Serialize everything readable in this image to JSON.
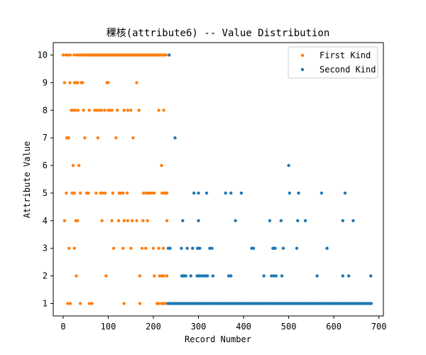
{
  "chart_data": {
    "type": "scatter",
    "title": "稞核(attribute6) -- Value Distribution",
    "xlabel": "Record Number",
    "ylabel": "Attribute Value",
    "xlim": [
      -22,
      710
    ],
    "ylim": [
      0.55,
      10.45
    ],
    "xticks": [
      0,
      100,
      200,
      300,
      400,
      500,
      600,
      700
    ],
    "yticks": [
      1,
      2,
      3,
      4,
      5,
      6,
      7,
      8,
      9,
      10
    ],
    "grid": false,
    "legend_position": "top-right",
    "series": [
      {
        "name": "First Kind",
        "color": "#ff7f0e",
        "points": [
          [
            0,
            10
          ],
          [
            6,
            10
          ],
          [
            11,
            10
          ],
          [
            16,
            10
          ],
          [
            24,
            10
          ],
          [
            30,
            10
          ],
          [
            35,
            10
          ],
          [
            39,
            10
          ],
          [
            43,
            10
          ],
          [
            48,
            10
          ],
          [
            52,
            10
          ],
          [
            56,
            10
          ],
          [
            60,
            10
          ],
          [
            64,
            10
          ],
          [
            68,
            10
          ],
          [
            72,
            10
          ],
          [
            76,
            10
          ],
          [
            80,
            10
          ],
          [
            84,
            10
          ],
          [
            88,
            10
          ],
          [
            92,
            10
          ],
          [
            96,
            10
          ],
          [
            100,
            10
          ],
          [
            104,
            10
          ],
          [
            108,
            10
          ],
          [
            112,
            10
          ],
          [
            116,
            10
          ],
          [
            120,
            10
          ],
          [
            124,
            10
          ],
          [
            128,
            10
          ],
          [
            132,
            10
          ],
          [
            136,
            10
          ],
          [
            140,
            10
          ],
          [
            144,
            10
          ],
          [
            148,
            10
          ],
          [
            152,
            10
          ],
          [
            156,
            10
          ],
          [
            160,
            10
          ],
          [
            164,
            10
          ],
          [
            168,
            10
          ],
          [
            172,
            10
          ],
          [
            176,
            10
          ],
          [
            180,
            10
          ],
          [
            184,
            10
          ],
          [
            188,
            10
          ],
          [
            192,
            10
          ],
          [
            196,
            10
          ],
          [
            200,
            10
          ],
          [
            204,
            10
          ],
          [
            208,
            10
          ],
          [
            212,
            10
          ],
          [
            216,
            10
          ],
          [
            220,
            10
          ],
          [
            224,
            10
          ],
          [
            228,
            10
          ],
          [
            3,
            9
          ],
          [
            15,
            9
          ],
          [
            25,
            9
          ],
          [
            29,
            9
          ],
          [
            32,
            9
          ],
          [
            40,
            9
          ],
          [
            43,
            9
          ],
          [
            97,
            9
          ],
          [
            100,
            9
          ],
          [
            163,
            9
          ],
          [
            18,
            8
          ],
          [
            22,
            8
          ],
          [
            27,
            8
          ],
          [
            33,
            8
          ],
          [
            45,
            8
          ],
          [
            58,
            8
          ],
          [
            70,
            8
          ],
          [
            75,
            8
          ],
          [
            80,
            8
          ],
          [
            85,
            8
          ],
          [
            92,
            8
          ],
          [
            100,
            8
          ],
          [
            103,
            8
          ],
          [
            108,
            8
          ],
          [
            120,
            8
          ],
          [
            135,
            8
          ],
          [
            143,
            8
          ],
          [
            150,
            8
          ],
          [
            168,
            8
          ],
          [
            212,
            8
          ],
          [
            223,
            8
          ],
          [
            8,
            7
          ],
          [
            12,
            7
          ],
          [
            48,
            7
          ],
          [
            77,
            7
          ],
          [
            117,
            7
          ],
          [
            155,
            7
          ],
          [
            22,
            6
          ],
          [
            35,
            6
          ],
          [
            218,
            6
          ],
          [
            7,
            5
          ],
          [
            20,
            5
          ],
          [
            25,
            5
          ],
          [
            38,
            5
          ],
          [
            52,
            5
          ],
          [
            56,
            5
          ],
          [
            73,
            5
          ],
          [
            83,
            5
          ],
          [
            88,
            5
          ],
          [
            93,
            5
          ],
          [
            110,
            5
          ],
          [
            124,
            5
          ],
          [
            128,
            5
          ],
          [
            133,
            5
          ],
          [
            142,
            5
          ],
          [
            178,
            5
          ],
          [
            184,
            5
          ],
          [
            188,
            5
          ],
          [
            192,
            5
          ],
          [
            197,
            5
          ],
          [
            202,
            5
          ],
          [
            219,
            5
          ],
          [
            224,
            5
          ],
          [
            227,
            5
          ],
          [
            230,
            5
          ],
          [
            3,
            4
          ],
          [
            28,
            4
          ],
          [
            32,
            4
          ],
          [
            86,
            4
          ],
          [
            108,
            4
          ],
          [
            123,
            4
          ],
          [
            135,
            4
          ],
          [
            143,
            4
          ],
          [
            153,
            4
          ],
          [
            163,
            4
          ],
          [
            177,
            4
          ],
          [
            187,
            4
          ],
          [
            230,
            4
          ],
          [
            13,
            3
          ],
          [
            25,
            3
          ],
          [
            112,
            3
          ],
          [
            133,
            3
          ],
          [
            150,
            3
          ],
          [
            175,
            3
          ],
          [
            183,
            3
          ],
          [
            200,
            3
          ],
          [
            212,
            3
          ],
          [
            222,
            3
          ],
          [
            29,
            2
          ],
          [
            95,
            2
          ],
          [
            170,
            2
          ],
          [
            202,
            2
          ],
          [
            214,
            2
          ],
          [
            219,
            2
          ],
          [
            223,
            2
          ],
          [
            230,
            2
          ],
          [
            10,
            1
          ],
          [
            16,
            1
          ],
          [
            38,
            1
          ],
          [
            58,
            1
          ],
          [
            64,
            1
          ],
          [
            135,
            1
          ],
          [
            170,
            1
          ],
          [
            208,
            1
          ],
          [
            212,
            1
          ],
          [
            218,
            1
          ],
          [
            222,
            1
          ],
          [
            226,
            1
          ]
        ]
      },
      {
        "name": "Second Kind",
        "color": "#1f77b4",
        "points": [
          [
            235,
            10
          ],
          [
            248,
            7
          ],
          [
            500,
            6
          ],
          [
            290,
            5
          ],
          [
            300,
            5
          ],
          [
            318,
            5
          ],
          [
            360,
            5
          ],
          [
            372,
            5
          ],
          [
            395,
            5
          ],
          [
            502,
            5
          ],
          [
            522,
            5
          ],
          [
            573,
            5
          ],
          [
            625,
            5
          ],
          [
            265,
            4
          ],
          [
            300,
            4
          ],
          [
            382,
            4
          ],
          [
            458,
            4
          ],
          [
            483,
            4
          ],
          [
            520,
            4
          ],
          [
            537,
            4
          ],
          [
            620,
            4
          ],
          [
            643,
            4
          ],
          [
            233,
            3
          ],
          [
            237,
            3
          ],
          [
            262,
            3
          ],
          [
            275,
            3
          ],
          [
            287,
            3
          ],
          [
            298,
            3
          ],
          [
            300,
            3
          ],
          [
            303,
            3
          ],
          [
            325,
            3
          ],
          [
            330,
            3
          ],
          [
            418,
            3
          ],
          [
            422,
            3
          ],
          [
            465,
            3
          ],
          [
            467,
            3
          ],
          [
            470,
            3
          ],
          [
            488,
            3
          ],
          [
            518,
            3
          ],
          [
            585,
            3
          ],
          [
            263,
            2
          ],
          [
            266,
            2
          ],
          [
            268,
            2
          ],
          [
            272,
            2
          ],
          [
            283,
            2
          ],
          [
            297,
            2
          ],
          [
            300,
            2
          ],
          [
            303,
            2
          ],
          [
            308,
            2
          ],
          [
            312,
            2
          ],
          [
            316,
            2
          ],
          [
            320,
            2
          ],
          [
            332,
            2
          ],
          [
            367,
            2
          ],
          [
            372,
            2
          ],
          [
            445,
            2
          ],
          [
            462,
            2
          ],
          [
            467,
            2
          ],
          [
            472,
            2
          ],
          [
            485,
            2
          ],
          [
            563,
            2
          ],
          [
            620,
            2
          ],
          [
            633,
            2
          ],
          [
            682,
            2
          ],
          [
            232,
            1
          ],
          [
            236,
            1
          ],
          [
            240,
            1
          ],
          [
            244,
            1
          ],
          [
            248,
            1
          ],
          [
            252,
            1
          ],
          [
            256,
            1
          ],
          [
            260,
            1
          ],
          [
            264,
            1
          ],
          [
            268,
            1
          ],
          [
            272,
            1
          ],
          [
            276,
            1
          ],
          [
            280,
            1
          ],
          [
            284,
            1
          ],
          [
            288,
            1
          ],
          [
            292,
            1
          ],
          [
            296,
            1
          ],
          [
            300,
            1
          ],
          [
            304,
            1
          ],
          [
            308,
            1
          ],
          [
            312,
            1
          ],
          [
            316,
            1
          ],
          [
            320,
            1
          ],
          [
            324,
            1
          ],
          [
            328,
            1
          ],
          [
            332,
            1
          ],
          [
            336,
            1
          ],
          [
            340,
            1
          ],
          [
            344,
            1
          ],
          [
            348,
            1
          ],
          [
            352,
            1
          ],
          [
            356,
            1
          ],
          [
            360,
            1
          ],
          [
            364,
            1
          ],
          [
            368,
            1
          ],
          [
            372,
            1
          ],
          [
            376,
            1
          ],
          [
            380,
            1
          ],
          [
            384,
            1
          ],
          [
            388,
            1
          ],
          [
            392,
            1
          ],
          [
            396,
            1
          ],
          [
            400,
            1
          ],
          [
            404,
            1
          ],
          [
            408,
            1
          ],
          [
            412,
            1
          ],
          [
            416,
            1
          ],
          [
            420,
            1
          ],
          [
            424,
            1
          ],
          [
            428,
            1
          ],
          [
            432,
            1
          ],
          [
            436,
            1
          ],
          [
            440,
            1
          ],
          [
            444,
            1
          ],
          [
            448,
            1
          ],
          [
            452,
            1
          ],
          [
            456,
            1
          ],
          [
            460,
            1
          ],
          [
            464,
            1
          ],
          [
            468,
            1
          ],
          [
            472,
            1
          ],
          [
            476,
            1
          ],
          [
            480,
            1
          ],
          [
            484,
            1
          ],
          [
            488,
            1
          ],
          [
            492,
            1
          ],
          [
            496,
            1
          ],
          [
            500,
            1
          ],
          [
            504,
            1
          ],
          [
            508,
            1
          ],
          [
            512,
            1
          ],
          [
            516,
            1
          ],
          [
            520,
            1
          ],
          [
            524,
            1
          ],
          [
            528,
            1
          ],
          [
            532,
            1
          ],
          [
            536,
            1
          ],
          [
            540,
            1
          ],
          [
            544,
            1
          ],
          [
            548,
            1
          ],
          [
            552,
            1
          ],
          [
            556,
            1
          ],
          [
            560,
            1
          ],
          [
            564,
            1
          ],
          [
            568,
            1
          ],
          [
            572,
            1
          ],
          [
            576,
            1
          ],
          [
            580,
            1
          ],
          [
            584,
            1
          ],
          [
            588,
            1
          ],
          [
            592,
            1
          ],
          [
            596,
            1
          ],
          [
            600,
            1
          ],
          [
            604,
            1
          ],
          [
            608,
            1
          ],
          [
            612,
            1
          ],
          [
            616,
            1
          ],
          [
            620,
            1
          ],
          [
            624,
            1
          ],
          [
            628,
            1
          ],
          [
            632,
            1
          ],
          [
            636,
            1
          ],
          [
            640,
            1
          ],
          [
            644,
            1
          ],
          [
            648,
            1
          ],
          [
            652,
            1
          ],
          [
            656,
            1
          ],
          [
            660,
            1
          ],
          [
            664,
            1
          ],
          [
            668,
            1
          ],
          [
            672,
            1
          ],
          [
            676,
            1
          ],
          [
            680,
            1
          ],
          [
            683,
            1
          ]
        ]
      }
    ]
  }
}
